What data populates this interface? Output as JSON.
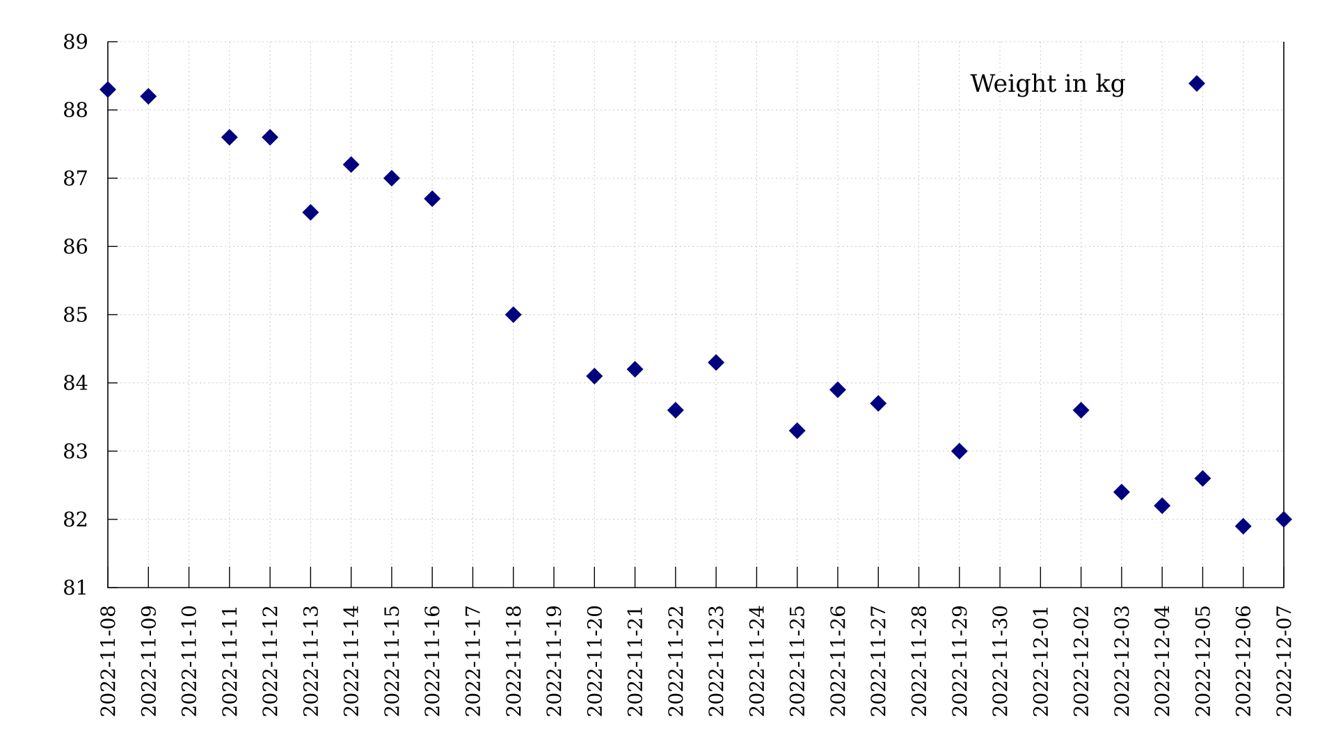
{
  "chart_data": {
    "type": "scatter",
    "title": "",
    "xlabel": "",
    "ylabel": "",
    "ylim": [
      81,
      89
    ],
    "yticks": [
      81,
      82,
      83,
      84,
      85,
      86,
      87,
      88,
      89
    ],
    "grid": true,
    "legend_position": "top-right",
    "marker": "diamond",
    "marker_color": "#00007f",
    "categories": [
      "2022-11-08",
      "2022-11-09",
      "2022-11-10",
      "2022-11-11",
      "2022-11-12",
      "2022-11-13",
      "2022-11-14",
      "2022-11-15",
      "2022-11-16",
      "2022-11-17",
      "2022-11-18",
      "2022-11-19",
      "2022-11-20",
      "2022-11-21",
      "2022-11-22",
      "2022-11-23",
      "2022-11-24",
      "2022-11-25",
      "2022-11-26",
      "2022-11-27",
      "2022-11-28",
      "2022-11-29",
      "2022-11-30",
      "2022-12-01",
      "2022-12-02",
      "2022-12-03",
      "2022-12-04",
      "2022-12-05",
      "2022-12-06",
      "2022-12-07"
    ],
    "series": [
      {
        "name": "Weight in kg",
        "points": [
          {
            "x": "2022-11-08",
            "y": 88.3
          },
          {
            "x": "2022-11-09",
            "y": 88.2
          },
          {
            "x": "2022-11-11",
            "y": 87.6
          },
          {
            "x": "2022-11-12",
            "y": 87.6
          },
          {
            "x": "2022-11-13",
            "y": 86.5
          },
          {
            "x": "2022-11-14",
            "y": 87.2
          },
          {
            "x": "2022-11-15",
            "y": 87.0
          },
          {
            "x": "2022-11-16",
            "y": 86.7
          },
          {
            "x": "2022-11-18",
            "y": 85.0
          },
          {
            "x": "2022-11-20",
            "y": 84.1
          },
          {
            "x": "2022-11-21",
            "y": 84.2
          },
          {
            "x": "2022-11-22",
            "y": 83.6
          },
          {
            "x": "2022-11-23",
            "y": 84.3
          },
          {
            "x": "2022-11-25",
            "y": 83.3
          },
          {
            "x": "2022-11-26",
            "y": 83.9
          },
          {
            "x": "2022-11-27",
            "y": 83.7
          },
          {
            "x": "2022-11-29",
            "y": 83.0
          },
          {
            "x": "2022-12-02",
            "y": 83.6
          },
          {
            "x": "2022-12-03",
            "y": 82.4
          },
          {
            "x": "2022-12-04",
            "y": 82.2
          },
          {
            "x": "2022-12-05",
            "y": 82.6
          },
          {
            "x": "2022-12-06",
            "y": 81.9
          },
          {
            "x": "2022-12-07",
            "y": 82.0
          }
        ]
      }
    ]
  }
}
